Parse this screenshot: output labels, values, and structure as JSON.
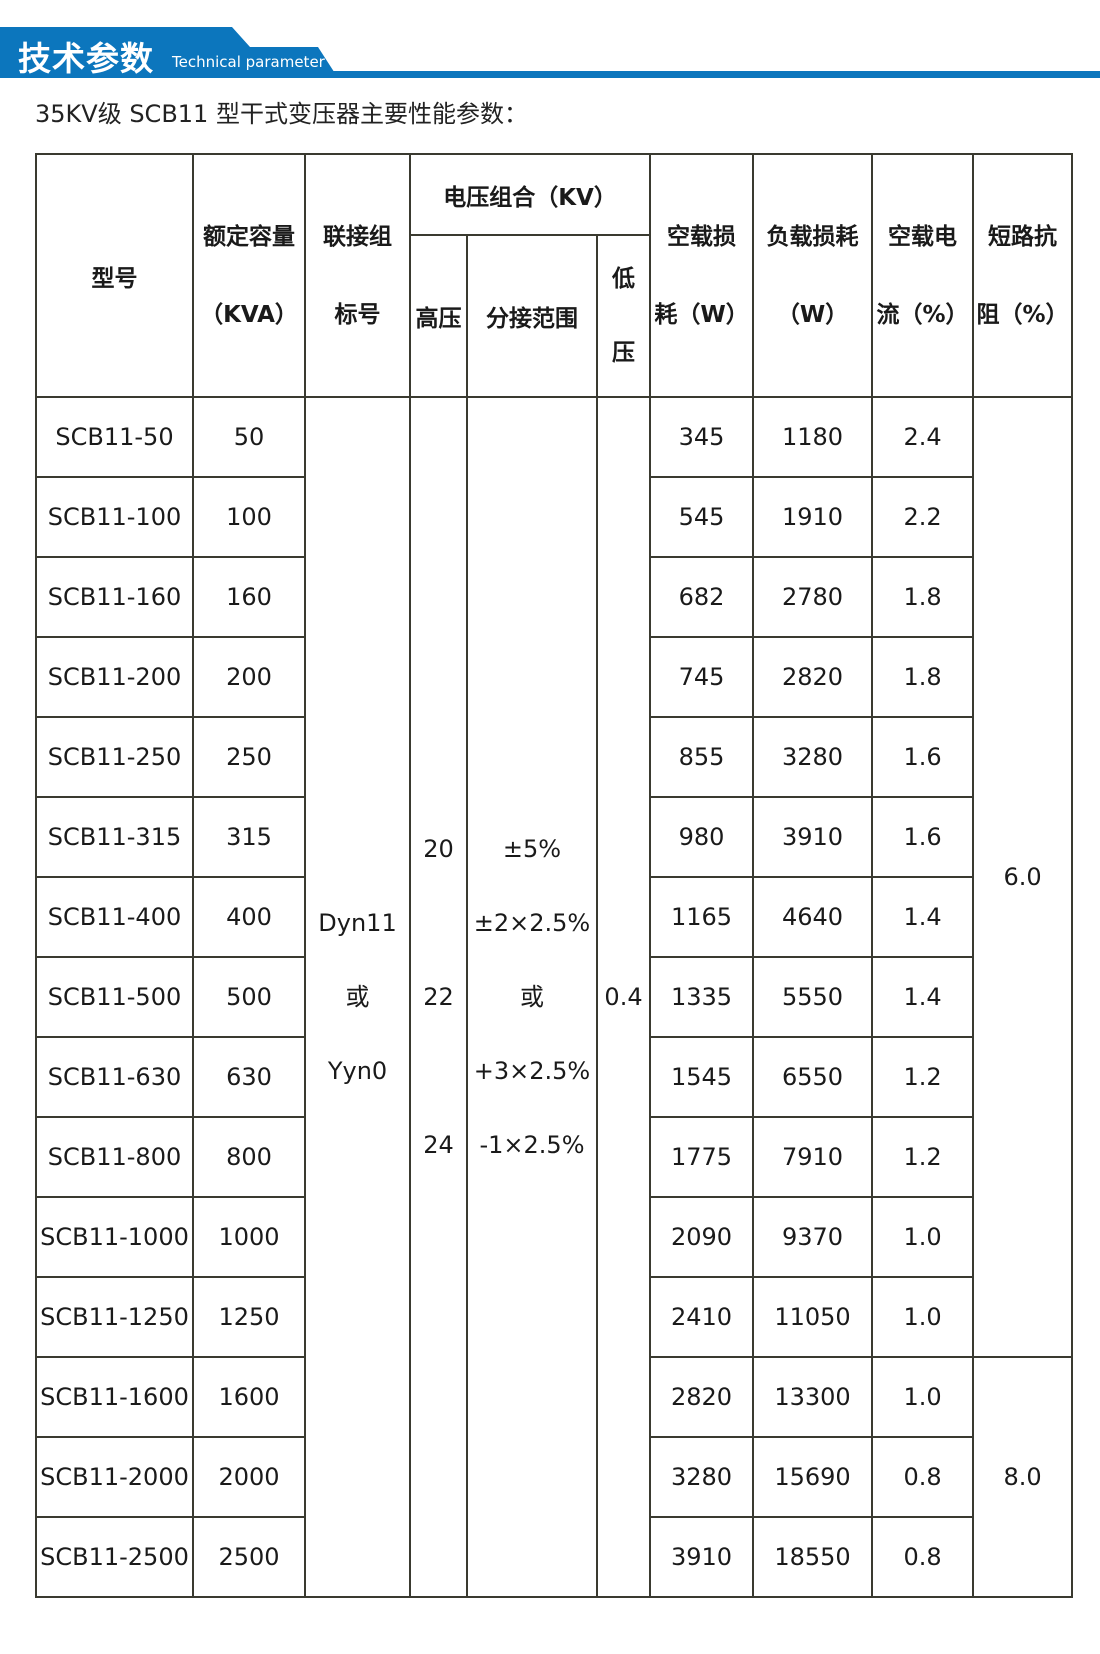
{
  "header": {
    "title": "技术参数",
    "subtitle": "Technical parameter",
    "accent": "#0c76bd"
  },
  "intro": "35KV级 SCB11 型干式变压器主要性能参数：",
  "table": {
    "columns": {
      "model": "型号",
      "capacity": [
        "额定容量",
        "（KVA）"
      ],
      "connection": [
        "联接组",
        "标号"
      ],
      "voltage_group": "电压组合（KV）",
      "hv": "高压",
      "tap": "分接范围",
      "lv": [
        "低",
        "压"
      ],
      "no_load_loss": [
        "空载损",
        "耗（W）"
      ],
      "load_loss": [
        "负载损耗",
        "（W）"
      ],
      "no_load_current": [
        "空载电",
        "流（%）"
      ],
      "impedance": [
        "短路抗",
        "阻（%）"
      ]
    },
    "connection_value": [
      "Dyn11",
      "或",
      "Yyn0"
    ],
    "hv_values": [
      "20",
      "22",
      "24"
    ],
    "tap_values": [
      "±5%",
      "±2×2.5%",
      "或",
      "+3×2.5%",
      "-1×2.5%"
    ],
    "lv_value": "0.4",
    "impedance_values": [
      "6.0",
      "8.0"
    ],
    "rows": [
      [
        "SCB11-50",
        "50",
        "345",
        "1180",
        "2.4"
      ],
      [
        "SCB11-100",
        "100",
        "545",
        "1910",
        "2.2"
      ],
      [
        "SCB11-160",
        "160",
        "682",
        "2780",
        "1.8"
      ],
      [
        "SCB11-200",
        "200",
        "745",
        "2820",
        "1.8"
      ],
      [
        "SCB11-250",
        "250",
        "855",
        "3280",
        "1.6"
      ],
      [
        "SCB11-315",
        "315",
        "980",
        "3910",
        "1.6"
      ],
      [
        "SCB11-400",
        "400",
        "1165",
        "4640",
        "1.4"
      ],
      [
        "SCB11-500",
        "500",
        "1335",
        "5550",
        "1.4"
      ],
      [
        "SCB11-630",
        "630",
        "1545",
        "6550",
        "1.2"
      ],
      [
        "SCB11-800",
        "800",
        "1775",
        "7910",
        "1.2"
      ],
      [
        "SCB11-1000",
        "1000",
        "2090",
        "9370",
        "1.0"
      ],
      [
        "SCB11-1250",
        "1250",
        "2410",
        "11050",
        "1.0"
      ],
      [
        "SCB11-1600",
        "1600",
        "2820",
        "13300",
        "1.0"
      ],
      [
        "SCB11-2000",
        "2000",
        "3280",
        "15690",
        "0.8"
      ],
      [
        "SCB11-2500",
        "2500",
        "3910",
        "18550",
        "0.8"
      ]
    ]
  }
}
